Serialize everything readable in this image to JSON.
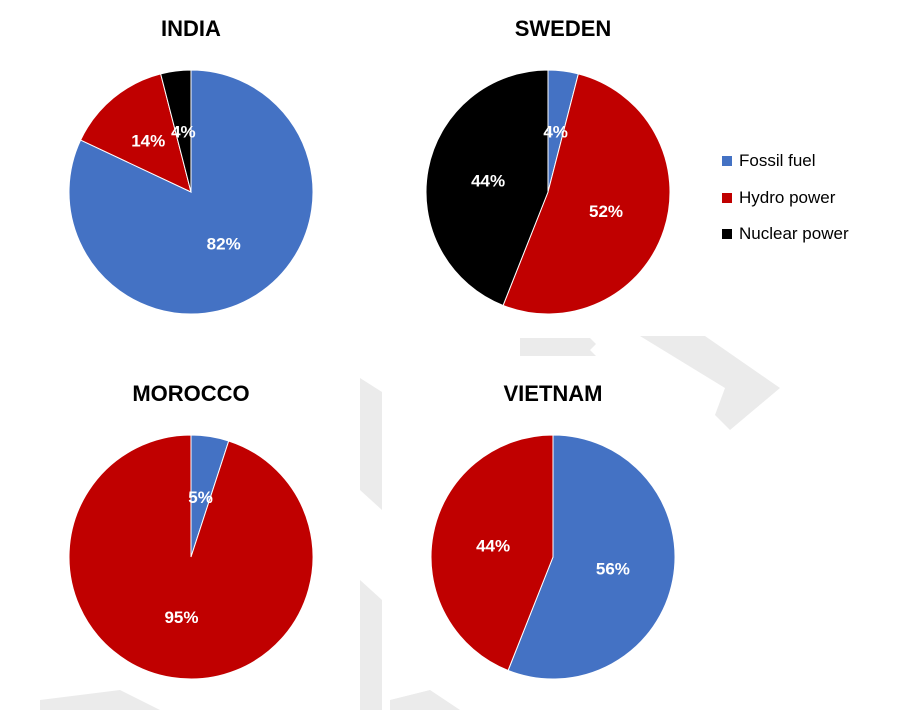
{
  "chart_data": [
    {
      "type": "pie",
      "title": "INDIA",
      "slices": [
        {
          "label": "Fossil fuel",
          "value": 82,
          "text": "82%"
        },
        {
          "label": "Hydro power",
          "value": 14,
          "text": "14%"
        },
        {
          "label": "Nuclear power",
          "value": 4,
          "text": "4%"
        }
      ]
    },
    {
      "type": "pie",
      "title": "SWEDEN",
      "slices": [
        {
          "label": "Fossil fuel",
          "value": 4,
          "text": "4%"
        },
        {
          "label": "Hydro power",
          "value": 52,
          "text": "52%"
        },
        {
          "label": "Nuclear power",
          "value": 44,
          "text": "44%"
        }
      ]
    },
    {
      "type": "pie",
      "title": "MOROCCO",
      "slices": [
        {
          "label": "Fossil fuel",
          "value": 5,
          "text": "5%"
        },
        {
          "label": "Hydro power",
          "value": 95,
          "text": "95%"
        }
      ]
    },
    {
      "type": "pie",
      "title": "VIETNAM",
      "slices": [
        {
          "label": "Fossil fuel",
          "value": 56,
          "text": "56%"
        },
        {
          "label": "Hydro power",
          "value": 44,
          "text": "44%"
        }
      ]
    }
  ],
  "legend": {
    "placement": "right",
    "items": [
      {
        "label": "Fossil fuel",
        "color": "#4472C4"
      },
      {
        "label": "Hydro power",
        "color": "#C00000"
      },
      {
        "label": "Nuclear power",
        "color": "#000000"
      }
    ]
  }
}
